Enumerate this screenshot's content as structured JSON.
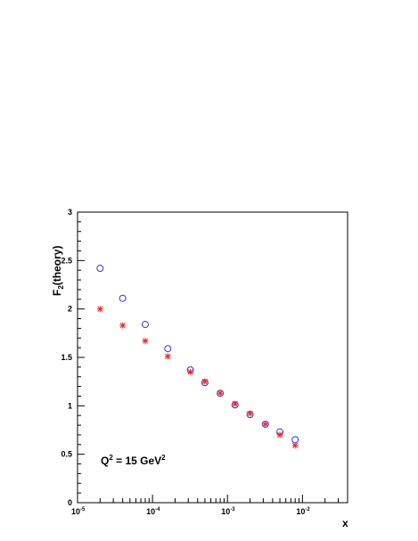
{
  "chart_data": {
    "type": "scatter",
    "xscale": "log",
    "xlim": [
      1e-05,
      0.04
    ],
    "ylim": [
      0,
      3
    ],
    "xlabel": "x",
    "ylabel_main": "F",
    "ylabel_sub": "2",
    "ylabel_rest": "(theory)",
    "annotation": {
      "prefix": "Q",
      "sup": "2",
      "middle": " = 15 GeV",
      "sup2": "2"
    },
    "x_tick_labels": [
      {
        "base": "10",
        "exp": "-5",
        "value": 1e-05
      },
      {
        "base": "10",
        "exp": "-4",
        "value": 0.0001
      },
      {
        "base": "10",
        "exp": "-3",
        "value": 0.001
      },
      {
        "base": "10",
        "exp": "-2",
        "value": 0.01
      }
    ],
    "y_tick_labels": [
      {
        "label": "0",
        "value": 0
      },
      {
        "label": "0.5",
        "value": 0.5
      },
      {
        "label": "1",
        "value": 1
      },
      {
        "label": "1.5",
        "value": 1.5
      },
      {
        "label": "2",
        "value": 2
      },
      {
        "label": "2.5",
        "value": 2.5
      },
      {
        "label": "3",
        "value": 3
      }
    ],
    "series": [
      {
        "marker": "circle",
        "color": "#3333ee",
        "x": [
          2e-05,
          4e-05,
          8e-05,
          0.00016,
          0.00032,
          0.0005,
          0.0008,
          0.00126,
          0.002,
          0.0032,
          0.005,
          0.008
        ],
        "y": [
          2.42,
          2.11,
          1.84,
          1.59,
          1.37,
          1.24,
          1.13,
          1.01,
          0.91,
          0.81,
          0.73,
          0.65
        ]
      },
      {
        "marker": "star",
        "color": "#ee2222",
        "x": [
          2e-05,
          4e-05,
          8e-05,
          0.00016,
          0.00032,
          0.0005,
          0.0008,
          0.00126,
          0.002,
          0.0032,
          0.005,
          0.008
        ],
        "y": [
          2.0,
          1.83,
          1.67,
          1.51,
          1.35,
          1.25,
          1.13,
          1.02,
          0.92,
          0.81,
          0.7,
          0.59
        ]
      }
    ]
  }
}
